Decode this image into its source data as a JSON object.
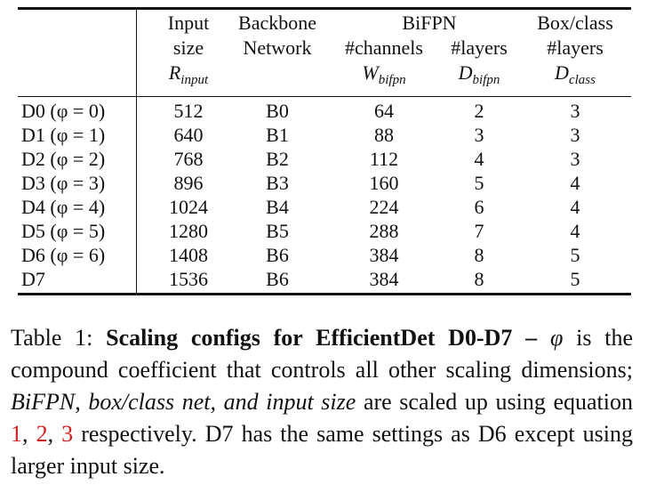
{
  "table": {
    "headers": {
      "input": [
        "Input",
        "size",
        "R",
        "input"
      ],
      "backbone": [
        "Backbone",
        "Network"
      ],
      "bifpn_group": "BiFPN",
      "channels": [
        "#channels",
        "W",
        "bifpn"
      ],
      "layers": [
        "#layers",
        "D",
        "bifpn"
      ],
      "boxclass": [
        "Box/class",
        "#layers",
        "D",
        "class"
      ]
    },
    "rows": [
      {
        "name": "D0 (φ = 0)",
        "input": "512",
        "backbone": "B0",
        "channels": "64",
        "layers": "2",
        "box": "3"
      },
      {
        "name": "D1 (φ = 1)",
        "input": "640",
        "backbone": "B1",
        "channels": "88",
        "layers": "3",
        "box": "3"
      },
      {
        "name": "D2 (φ = 2)",
        "input": "768",
        "backbone": "B2",
        "channels": "112",
        "layers": "4",
        "box": "3"
      },
      {
        "name": "D3 (φ = 3)",
        "input": "896",
        "backbone": "B3",
        "channels": "160",
        "layers": "5",
        "box": "4"
      },
      {
        "name": "D4 (φ = 4)",
        "input": "1024",
        "backbone": "B4",
        "channels": "224",
        "layers": "6",
        "box": "4"
      },
      {
        "name": "D5 (φ = 5)",
        "input": "1280",
        "backbone": "B5",
        "channels": "288",
        "layers": "7",
        "box": "4"
      },
      {
        "name": "D6 (φ = 6)",
        "input": "1408",
        "backbone": "B6",
        "channels": "384",
        "layers": "8",
        "box": "5"
      },
      {
        "name": "D7",
        "input": "1536",
        "backbone": "B6",
        "channels": "384",
        "layers": "8",
        "box": "5"
      }
    ]
  },
  "caption": {
    "label": "Table 1:",
    "bold": "Scaling configs for EfficientDet D0-D7 –",
    "phi": "φ",
    "t1": "is the compound coefficient that controls all other scaling dimensions;",
    "italic": "BiFPN, box/class net, and input size",
    "t2": "are scaled up using equation",
    "ref1": "1",
    "ref2": "2",
    "ref3": "3",
    "t3": "respectively. D7 has the same settings as D6 except using larger input size."
  }
}
